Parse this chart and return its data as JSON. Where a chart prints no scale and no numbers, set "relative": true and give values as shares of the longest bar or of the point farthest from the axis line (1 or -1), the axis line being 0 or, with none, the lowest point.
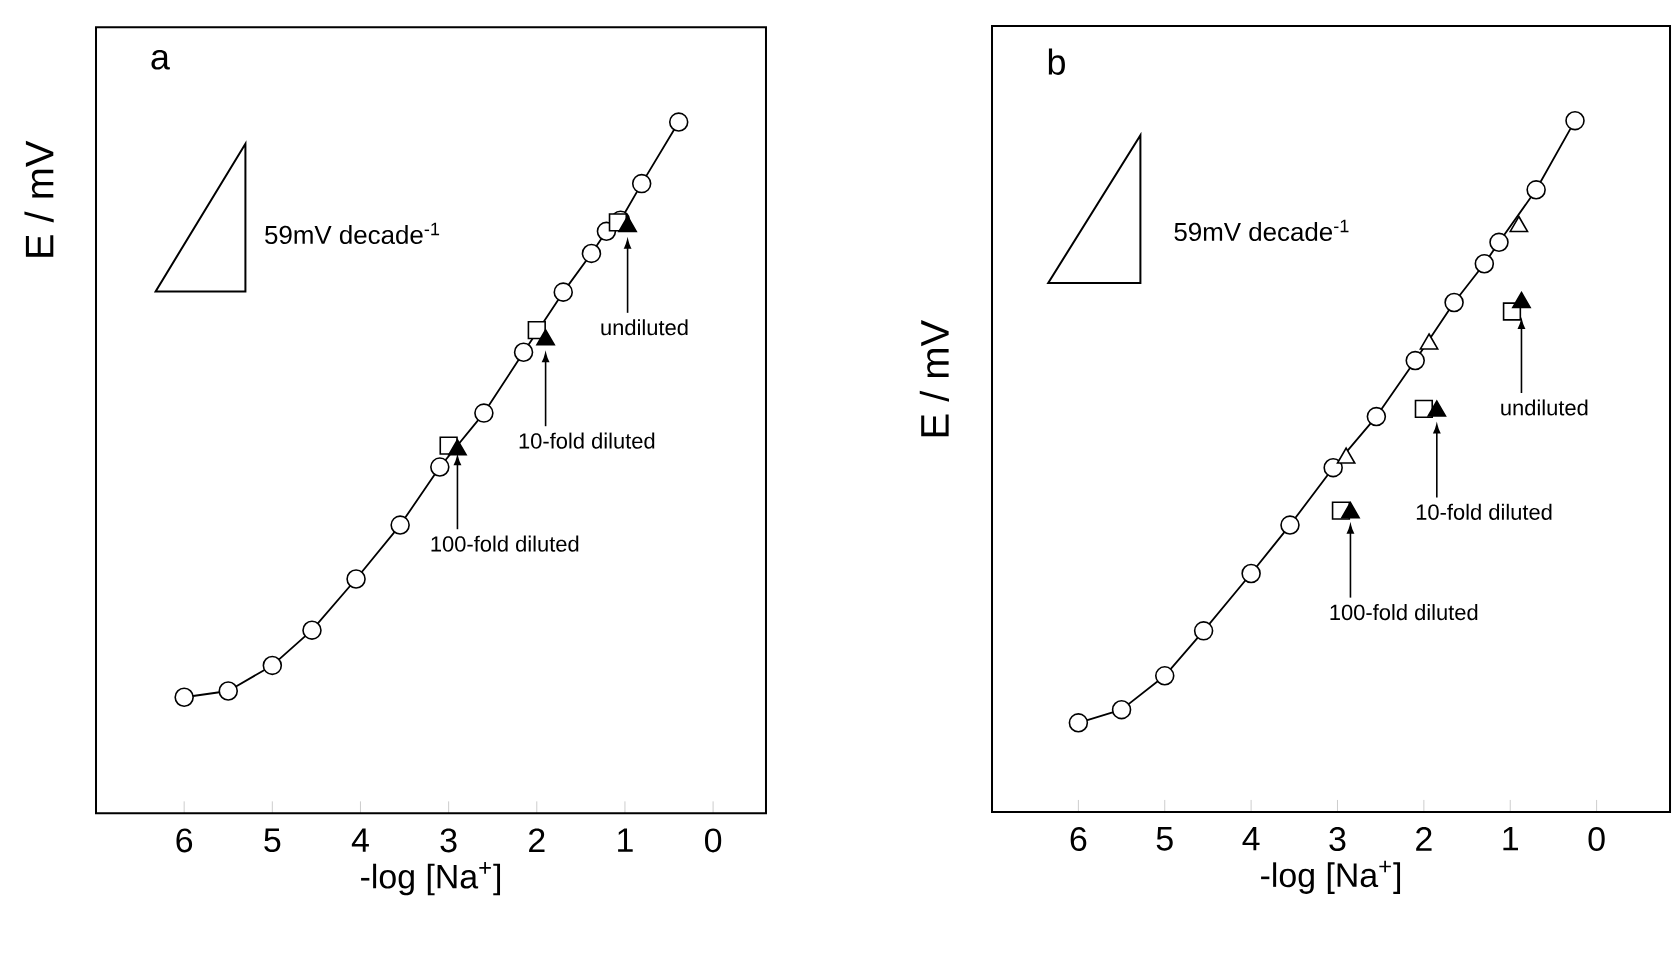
{
  "chart_data": [
    {
      "type": "line",
      "title": "a",
      "xlabel": "-log [Na$^{+}$]",
      "ylabel": "E / mV",
      "relative": true,
      "xlim": [
        7,
        -0.6
      ],
      "xticks": [
        6,
        5,
        4,
        3,
        2,
        1,
        0
      ],
      "annotations": [
        "59mV decade$^{-1}$",
        {
          "text": "undiluted",
          "x": 0.97,
          "y": 0.834
        },
        {
          "text": "10-fold diluted",
          "x": 1.9,
          "y": 0.67
        },
        {
          "text": "100-fold diluted",
          "x": 2.9,
          "y": 0.521
        }
      ],
      "series": [
        {
          "color": "#000000",
          "marker": "circle",
          "line_style": "solid",
          "x": [
            6.0,
            5.5,
            5.0,
            4.55,
            4.05,
            3.55,
            3.1,
            2.6,
            2.15,
            1.7,
            1.38,
            1.21,
            1.05,
            0.81,
            0.39
          ],
          "values": [
            0.168,
            0.177,
            0.214,
            0.265,
            0.339,
            0.417,
            0.501,
            0.579,
            0.667,
            0.754,
            0.81,
            0.842,
            0.858,
            0.911,
            1
          ]
        },
        {
          "type": "scatter",
          "color": "#ffffff",
          "marker": "square",
          "x": [
            3.0,
            2.0,
            1.08
          ],
          "values": [
            0.532,
            0.699,
            0.855
          ]
        },
        {
          "type": "scatter",
          "color": "#000000",
          "marker": "triangle",
          "x": [
            2.9,
            1.9,
            0.97
          ],
          "values": [
            0.526,
            0.685,
            0.849
          ]
        }
      ]
    },
    {
      "type": "line",
      "title": "b",
      "xlabel": "-log [Na$^{+}$]",
      "ylabel": "E / mV",
      "relative": true,
      "xlim": [
        7,
        -0.85
      ],
      "xticks": [
        6,
        5,
        4,
        3,
        2,
        1,
        0
      ],
      "annotations": [
        "59mV decade$^{-1}$",
        {
          "text": "undiluted",
          "x": 0.87,
          "y": 0.716
        },
        {
          "text": "10-fold diluted",
          "x": 1.85,
          "y": 0.565
        },
        {
          "text": "100-fold diluted",
          "x": 2.85,
          "y": 0.42
        }
      ],
      "series": [
        {
          "color": "#000000",
          "marker": "circle",
          "line_style": "solid",
          "x": [
            6.0,
            5.5,
            5.0,
            4.55,
            4.0,
            3.55,
            3.05,
            2.55,
            2.1,
            1.65,
            1.3,
            1.13,
            0.7,
            0.25
          ],
          "values": [
            0.129,
            0.148,
            0.197,
            0.262,
            0.345,
            0.415,
            0.498,
            0.572,
            0.653,
            0.737,
            0.793,
            0.824,
            0.9,
            1
          ]
        },
        {
          "type": "scatter",
          "color": "#ffffff",
          "marker": "triangle",
          "x": [
            2.9,
            1.94,
            0.9
          ],
          "values": [
            0.512,
            0.677,
            0.847
          ]
        },
        {
          "type": "scatter",
          "color": "#ffffff",
          "marker": "square",
          "x": [
            2.96,
            2.0,
            0.98
          ],
          "values": [
            0.436,
            0.583,
            0.724
          ]
        },
        {
          "type": "scatter",
          "color": "#000000",
          "marker": "triangle",
          "x": [
            2.85,
            1.85,
            0.87
          ],
          "values": [
            0.433,
            0.58,
            0.737
          ]
        }
      ]
    }
  ]
}
